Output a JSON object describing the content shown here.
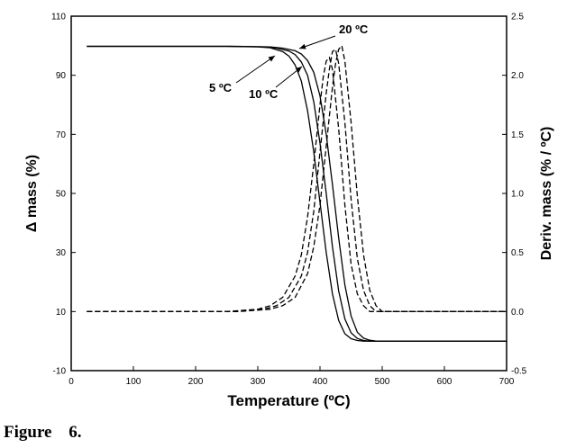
{
  "chart_data": {
    "type": "line",
    "xlabel": "Temperature (ºC)",
    "ylabel": "Δ mass (%)",
    "y2label": "Deriv. mass (% / ºC)",
    "xlim": [
      0,
      700
    ],
    "ylim": [
      -10,
      110
    ],
    "y2lim": [
      -0.5,
      2.5
    ],
    "x_ticks": [
      0,
      100,
      200,
      300,
      400,
      500,
      600,
      700
    ],
    "y_ticks": [
      -10,
      10,
      30,
      50,
      70,
      90,
      110
    ],
    "y2_ticks": [
      -0.5,
      0.0,
      0.5,
      1.0,
      1.5,
      2.0,
      2.5
    ],
    "y2_tick_labels": [
      "-0.5",
      "0.0",
      "0.5",
      "1.0",
      "1.5",
      "2.0",
      "2.5"
    ],
    "grid": false,
    "annotations": [
      {
        "text": "5 ºC",
        "series": "5 ºC"
      },
      {
        "text": "10 ºC",
        "series": "10 ºC"
      },
      {
        "text": "20 ºC",
        "series": "20 ºC"
      }
    ],
    "series": [
      {
        "name": "5 ºC",
        "axis": "left",
        "style": "solid",
        "x": [
          25,
          250,
          300,
          320,
          340,
          350,
          360,
          370,
          380,
          390,
          400,
          410,
          420,
          430,
          440,
          450,
          460,
          470,
          490,
          700
        ],
        "y": [
          99.8,
          99.8,
          99.6,
          99.3,
          98.0,
          96.5,
          93.5,
          88.0,
          78.0,
          64.0,
          47.0,
          30.0,
          16.0,
          7.0,
          2.5,
          0.8,
          0.2,
          0.0,
          0.0,
          0.0
        ]
      },
      {
        "name": "10 ºC",
        "axis": "left",
        "style": "solid",
        "x": [
          25,
          260,
          310,
          330,
          350,
          360,
          370,
          380,
          390,
          400,
          410,
          420,
          430,
          440,
          450,
          460,
          470,
          480,
          500,
          700
        ],
        "y": [
          99.8,
          99.8,
          99.6,
          99.2,
          98.2,
          97.0,
          94.5,
          90.0,
          81.0,
          67.0,
          50.0,
          32.0,
          17.0,
          7.5,
          2.8,
          0.9,
          0.2,
          0.0,
          0.0,
          0.0
        ]
      },
      {
        "name": "20 ºC",
        "axis": "left",
        "style": "solid",
        "x": [
          25,
          270,
          320,
          340,
          360,
          370,
          380,
          390,
          400,
          410,
          420,
          430,
          440,
          450,
          460,
          470,
          480,
          490,
          510,
          700
        ],
        "y": [
          99.8,
          99.8,
          99.6,
          99.2,
          98.3,
          97.2,
          95.0,
          91.0,
          83.0,
          70.0,
          53.0,
          35.0,
          19.0,
          8.5,
          3.0,
          1.0,
          0.3,
          0.0,
          0.0,
          0.0
        ]
      },
      {
        "name": "5 ºC deriv",
        "axis": "right",
        "style": "dashed",
        "x": [
          25,
          250,
          300,
          320,
          340,
          360,
          370,
          380,
          390,
          400,
          405,
          410,
          415,
          420,
          430,
          440,
          450,
          460,
          470,
          480,
          700
        ],
        "y": [
          0.0,
          0.0,
          0.02,
          0.05,
          0.12,
          0.3,
          0.48,
          0.8,
          1.25,
          1.75,
          1.98,
          2.12,
          2.15,
          2.05,
          1.55,
          0.9,
          0.4,
          0.15,
          0.05,
          0.0,
          0.0
        ]
      },
      {
        "name": "10 ºC deriv",
        "axis": "right",
        "style": "dashed",
        "x": [
          25,
          260,
          310,
          330,
          350,
          370,
          380,
          390,
          400,
          410,
          415,
          420,
          425,
          430,
          440,
          450,
          460,
          470,
          480,
          490,
          700
        ],
        "y": [
          0.0,
          0.0,
          0.02,
          0.05,
          0.12,
          0.3,
          0.5,
          0.85,
          1.35,
          1.85,
          2.05,
          2.2,
          2.22,
          2.1,
          1.6,
          0.95,
          0.45,
          0.18,
          0.05,
          0.0,
          0.0
        ]
      },
      {
        "name": "20 ºC deriv",
        "axis": "right",
        "style": "dashed",
        "x": [
          25,
          270,
          320,
          340,
          360,
          380,
          390,
          400,
          410,
          420,
          425,
          430,
          435,
          440,
          450,
          460,
          470,
          480,
          490,
          500,
          700
        ],
        "y": [
          0.0,
          0.0,
          0.02,
          0.05,
          0.12,
          0.32,
          0.55,
          0.9,
          1.4,
          1.9,
          2.1,
          2.22,
          2.25,
          2.12,
          1.6,
          0.98,
          0.48,
          0.18,
          0.05,
          0.0,
          0.0
        ]
      }
    ]
  },
  "caption": {
    "label": "Figure",
    "number": "6."
  }
}
